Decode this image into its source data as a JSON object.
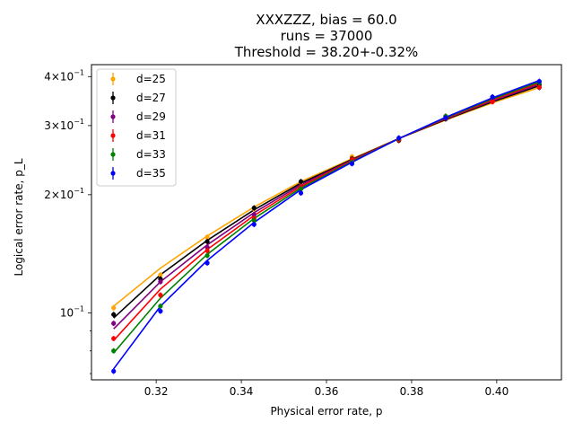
{
  "chart_data": {
    "type": "scatter",
    "title_lines": [
      "XXXZZZ, bias = 60.0",
      "runs = 37000",
      "Threshold = 38.20+-0.32%"
    ],
    "xlabel": "Physical error rate, p",
    "ylabel": "Logical error rate, p_L",
    "xlim": [
      0.3048,
      0.4152
    ],
    "ylim": [
      0.0675,
      0.429
    ],
    "yscale": "log",
    "x_ticks": [
      0.32,
      0.34,
      0.36,
      0.38,
      0.4
    ],
    "x_tick_labels": [
      "0.32",
      "0.34",
      "0.36",
      "0.38",
      "0.40"
    ],
    "y_ticks": [
      0.1,
      0.2,
      0.3,
      0.4
    ],
    "y_tick_labels": [
      [
        "10",
        "−1"
      ],
      [
        "2×10",
        "−1"
      ],
      [
        "3×10",
        "−1"
      ],
      [
        "4×10",
        "−1"
      ]
    ],
    "grid": false,
    "legend_position": "upper-left",
    "x": [
      0.31,
      0.321,
      0.332,
      0.343,
      0.354,
      0.366,
      0.377,
      0.388,
      0.399,
      0.41
    ],
    "series": [
      {
        "name": "d=25",
        "color": "#ffa500",
        "points": [
          0.103,
          0.125,
          0.156,
          0.184,
          0.215,
          0.25,
          0.275,
          0.317,
          0.347,
          0.38
        ],
        "fit": [
          0.104,
          0.13,
          0.157,
          0.186,
          0.216,
          0.247,
          0.278,
          0.31,
          0.343,
          0.375
        ]
      },
      {
        "name": "d=27",
        "color": "#000000",
        "points": [
          0.099,
          0.122,
          0.152,
          0.185,
          0.216,
          0.247,
          0.275,
          0.312,
          0.352,
          0.381
        ],
        "fit": [
          0.097,
          0.125,
          0.153,
          0.183,
          0.214,
          0.246,
          0.278,
          0.311,
          0.345,
          0.379
        ]
      },
      {
        "name": "d=29",
        "color": "#800080",
        "points": [
          0.094,
          0.12,
          0.147,
          0.178,
          0.21,
          0.245,
          0.277,
          0.315,
          0.349,
          0.375
        ],
        "fit": [
          0.091,
          0.12,
          0.149,
          0.18,
          0.212,
          0.245,
          0.278,
          0.312,
          0.347,
          0.382
        ]
      },
      {
        "name": "d=31",
        "color": "#ff0000",
        "points": [
          0.086,
          0.111,
          0.144,
          0.174,
          0.209,
          0.246,
          0.276,
          0.313,
          0.345,
          0.376
        ],
        "fit": [
          0.085,
          0.115,
          0.145,
          0.177,
          0.21,
          0.244,
          0.278,
          0.313,
          0.349,
          0.385
        ]
      },
      {
        "name": "d=33",
        "color": "#008000",
        "points": [
          0.08,
          0.104,
          0.14,
          0.172,
          0.207,
          0.242,
          0.278,
          0.317,
          0.355,
          0.386
        ],
        "fit": [
          0.079,
          0.109,
          0.141,
          0.174,
          0.208,
          0.243,
          0.278,
          0.314,
          0.351,
          0.388
        ]
      },
      {
        "name": "d=35",
        "color": "#0000ff",
        "points": [
          0.071,
          0.101,
          0.134,
          0.168,
          0.202,
          0.24,
          0.279,
          0.314,
          0.355,
          0.389
        ],
        "fit": [
          0.072,
          0.104,
          0.136,
          0.17,
          0.206,
          0.242,
          0.278,
          0.315,
          0.353,
          0.391
        ]
      }
    ]
  }
}
